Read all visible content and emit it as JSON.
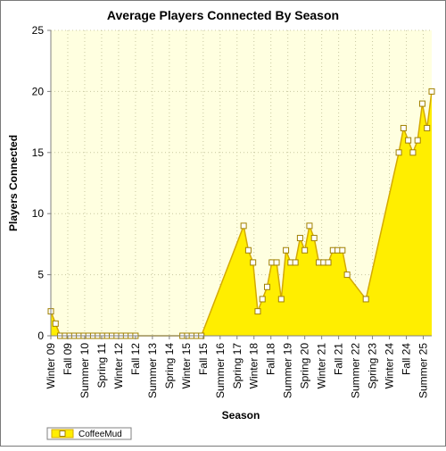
{
  "chart_data": {
    "type": "area",
    "title": "Average Players Connected By Season",
    "xlabel": "Season",
    "ylabel": "Players Connected",
    "ylim": [
      0,
      25
    ],
    "yticks": [
      0,
      5,
      10,
      15,
      20,
      25
    ],
    "grid": true,
    "legend_position": "bottom-left",
    "x_tick_labels": [
      "Winter 09",
      "Fall 09",
      "Summer 10",
      "Spring 11",
      "Winter 12",
      "Fall 12",
      "Summer 13",
      "Spring 14",
      "Winter 15",
      "Fall 15",
      "Summer 16",
      "Spring 17",
      "Winter 18",
      "Fall 18",
      "Summer 19",
      "Spring 20",
      "Winter 21",
      "Fall 21",
      "Summer 22",
      "Spring 23",
      "Winter 24",
      "Fall 24",
      "Summer 25"
    ],
    "series": [
      {
        "name": "CoffeeMud",
        "points": [
          {
            "x": 0,
            "y": 2
          },
          {
            "x": 1,
            "y": 1
          },
          {
            "x": 2,
            "y": 0
          },
          {
            "x": 3,
            "y": 0
          },
          {
            "x": 4,
            "y": 0
          },
          {
            "x": 5,
            "y": 0
          },
          {
            "x": 6,
            "y": 0
          },
          {
            "x": 7,
            "y": 0
          },
          {
            "x": 8,
            "y": 0
          },
          {
            "x": 9,
            "y": 0
          },
          {
            "x": 10,
            "y": 0
          },
          {
            "x": 11,
            "y": 0
          },
          {
            "x": 12,
            "y": 0
          },
          {
            "x": 13,
            "y": 0
          },
          {
            "x": 14,
            "y": 0
          },
          {
            "x": 15,
            "y": 0
          },
          {
            "x": 16,
            "y": 0
          },
          {
            "x": 17,
            "y": 0
          },
          {
            "x": 18,
            "y": 0
          },
          {
            "x": 28,
            "y": 0
          },
          {
            "x": 29,
            "y": 0
          },
          {
            "x": 30,
            "y": 0
          },
          {
            "x": 31,
            "y": 0
          },
          {
            "x": 32,
            "y": 0
          },
          {
            "x": 41,
            "y": 9
          },
          {
            "x": 42,
            "y": 7
          },
          {
            "x": 43,
            "y": 6
          },
          {
            "x": 44,
            "y": 2
          },
          {
            "x": 45,
            "y": 3
          },
          {
            "x": 46,
            "y": 4
          },
          {
            "x": 47,
            "y": 6
          },
          {
            "x": 48,
            "y": 6
          },
          {
            "x": 49,
            "y": 3
          },
          {
            "x": 50,
            "y": 7
          },
          {
            "x": 51,
            "y": 6
          },
          {
            "x": 52,
            "y": 6
          },
          {
            "x": 53,
            "y": 8
          },
          {
            "x": 54,
            "y": 7
          },
          {
            "x": 55,
            "y": 9
          },
          {
            "x": 56,
            "y": 8
          },
          {
            "x": 57,
            "y": 6
          },
          {
            "x": 58,
            "y": 6
          },
          {
            "x": 59,
            "y": 6
          },
          {
            "x": 60,
            "y": 7
          },
          {
            "x": 61,
            "y": 7
          },
          {
            "x": 62,
            "y": 7
          },
          {
            "x": 63,
            "y": 5
          },
          {
            "x": 67,
            "y": 3
          },
          {
            "x": 74,
            "y": 15
          },
          {
            "x": 75,
            "y": 17
          },
          {
            "x": 76,
            "y": 16
          },
          {
            "x": 77,
            "y": 15
          },
          {
            "x": 78,
            "y": 16
          },
          {
            "x": 79,
            "y": 19
          },
          {
            "x": 80,
            "y": 17
          },
          {
            "x": 81,
            "y": 20
          }
        ]
      }
    ],
    "colors": {
      "plot_background": "#ffffe0",
      "fill": "#ffee00",
      "line": "#d4aa00",
      "marker_fill": "#ffffff",
      "marker_stroke": "#a08000",
      "grid": "#c8c8a0",
      "axis": "#808080",
      "frame": "#555555"
    }
  }
}
